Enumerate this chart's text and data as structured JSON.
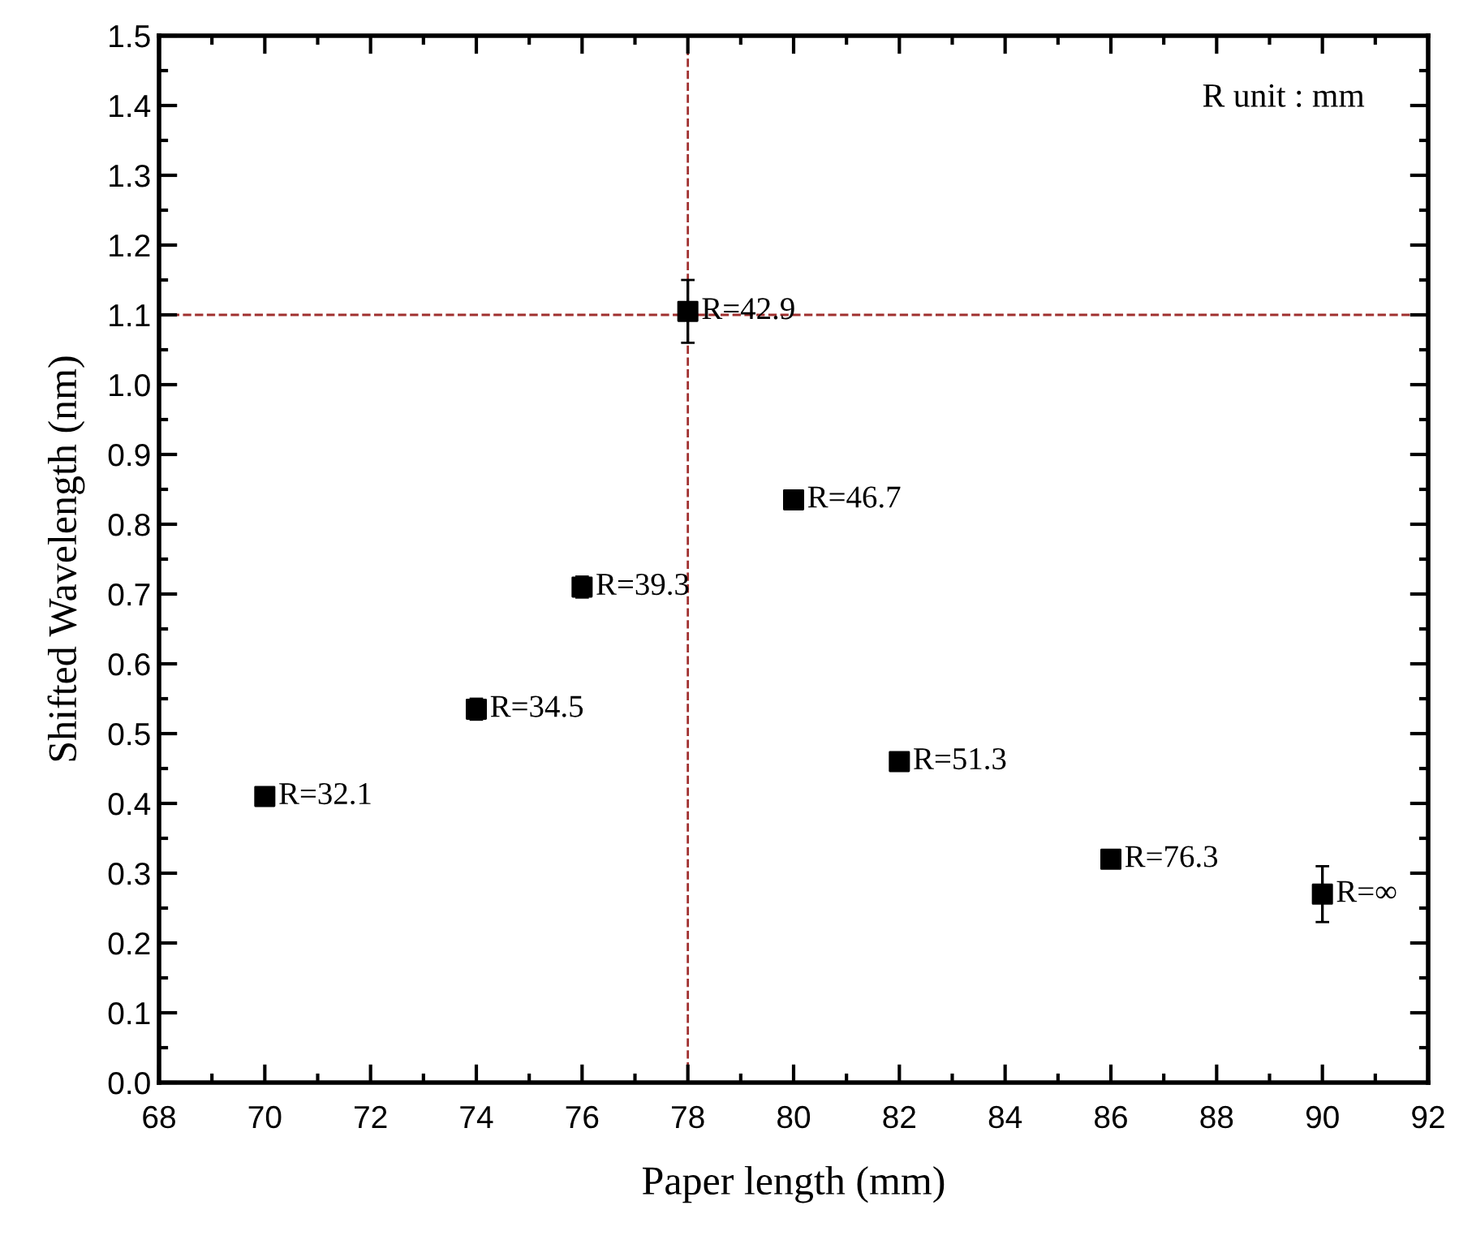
{
  "chart_data": {
    "type": "scatter",
    "xlabel": "Paper length (mm)",
    "ylabel": "Shifted Wavelength (nm)",
    "x": [
      70,
      74,
      76,
      78,
      80,
      82,
      86,
      90
    ],
    "series": [
      {
        "color": "#000000",
        "values": [
          0.41,
          0.535,
          0.71,
          1.105,
          0.835,
          0.46,
          0.32,
          0.27
        ],
        "errors": [
          null,
          0.015,
          0.015,
          0.045,
          null,
          null,
          null,
          0.04
        ]
      }
    ],
    "marker": "square",
    "xlim": [
      68,
      92
    ],
    "xticks": [
      68,
      70,
      72,
      74,
      76,
      78,
      80,
      82,
      84,
      86,
      88,
      90,
      92
    ],
    "ylim": [
      0.0,
      1.5
    ],
    "yticks": [
      {
        "value": 0,
        "label": "0.0"
      },
      0.1,
      0.2,
      0.3,
      0.4,
      0.5,
      0.6,
      0.7,
      0.8,
      0.9,
      {
        "value": 1,
        "label": "1.0"
      },
      1.1,
      1.2,
      1.3,
      1.4,
      1.5
    ],
    "ref_lines": [
      {
        "axis": "x",
        "value": 78,
        "color": "#a0302f",
        "line_style": "dashed"
      },
      {
        "axis": "y",
        "value": 1.1,
        "color": "#a0302f",
        "line_style": "dashed"
      }
    ],
    "annotations": [
      "R unit : mm",
      {
        "text": "R=32.1",
        "x": 70,
        "y": 0.41
      },
      {
        "text": "R=34.5",
        "x": 74,
        "y": 0.535
      },
      {
        "text": "R=39.3",
        "x": 76,
        "y": 0.71
      },
      {
        "text": "R=42.9",
        "x": 78,
        "y": 1.105
      },
      {
        "text": "R=46.7",
        "x": 80,
        "y": 0.835
      },
      {
        "text": "R=51.3",
        "x": 82,
        "y": 0.46
      },
      {
        "text": "R=76.3",
        "x": 86,
        "y": 0.32
      },
      {
        "text": "R=∞",
        "x": 90,
        "y": 0.27
      }
    ],
    "grid": false,
    "legend": false
  }
}
